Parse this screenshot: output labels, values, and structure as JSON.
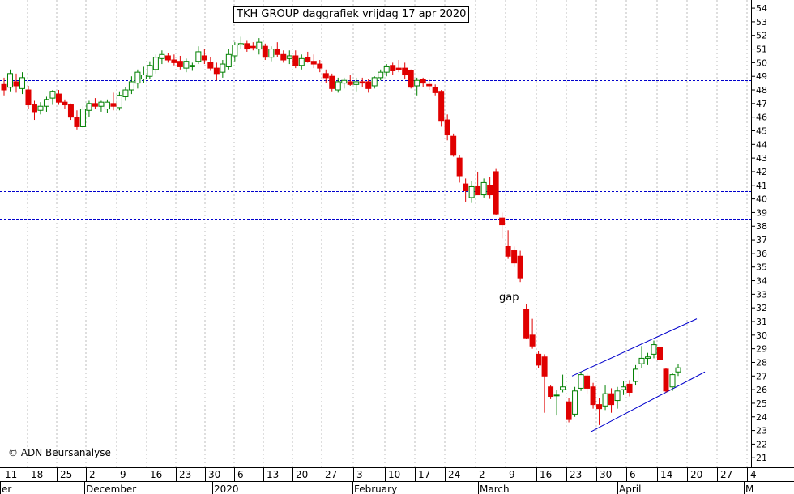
{
  "chart_data": {
    "type": "candlestick",
    "title": "TKH GROUP daggrafiek vrijdag 17 apr 2020",
    "copyright": "© ADN Beursanalyse",
    "annotations": [
      {
        "text": "gap"
      }
    ],
    "ylim": [
      20.3,
      54.6
    ],
    "y_ticks": [
      21,
      22,
      23,
      24,
      25,
      26,
      27,
      28,
      29,
      30,
      31,
      32,
      33,
      34,
      35,
      36,
      37,
      38,
      39,
      40,
      41,
      42,
      43,
      44,
      45,
      46,
      47,
      48,
      49,
      50,
      51,
      52,
      53,
      54
    ],
    "horizontal_levels": [
      52,
      48.7,
      40.6,
      38.5
    ],
    "x_tick_labels": [
      "11",
      "18",
      "25",
      "2",
      "9",
      "16",
      "23",
      "30",
      "6",
      "13",
      "20",
      "27",
      "3",
      "10",
      "17",
      "24",
      "2",
      "9",
      "16",
      "23",
      "30",
      "6",
      "14",
      "20",
      "27",
      "4"
    ],
    "month_labels": [
      "er",
      "December",
      "2020",
      "February",
      "March",
      "April",
      "M"
    ],
    "up_color": "#008000",
    "down_color": "#e00000",
    "channel_color": "#0000cc",
    "level_color": "#0000cc",
    "channel_lines": [
      {
        "x": [
          35,
          42
        ],
        "y": [
          27.0,
          31.2
        ]
      },
      {
        "x": [
          36,
          43
        ],
        "y": [
          22.9,
          27.3
        ]
      }
    ],
    "candles": [
      {
        "date": "11 Nov",
        "o": 48.4,
        "h": 48.9,
        "l": 47.6,
        "c": 48.0
      },
      {
        "date": "12 Nov",
        "o": 48.2,
        "h": 49.5,
        "l": 47.9,
        "c": 49.2
      },
      {
        "date": "13 Nov",
        "o": 48.6,
        "h": 49.2,
        "l": 47.8,
        "c": 48.3
      },
      {
        "date": "14 Nov",
        "o": 48.1,
        "h": 49.3,
        "l": 47.7,
        "c": 48.9
      },
      {
        "date": "15 Nov",
        "o": 48.0,
        "h": 48.3,
        "l": 46.6,
        "c": 46.9
      },
      {
        "date": "18 Nov",
        "o": 46.9,
        "h": 47.2,
        "l": 45.8,
        "c": 46.4
      },
      {
        "date": "19 Nov",
        "o": 46.5,
        "h": 47.1,
        "l": 46.2,
        "c": 46.8
      },
      {
        "date": "20 Nov",
        "o": 46.8,
        "h": 47.5,
        "l": 46.4,
        "c": 47.3
      },
      {
        "date": "21 Nov",
        "o": 47.4,
        "h": 48.0,
        "l": 46.9,
        "c": 47.9
      },
      {
        "date": "22 Nov",
        "o": 47.7,
        "h": 48.0,
        "l": 46.9,
        "c": 47.1
      },
      {
        "date": "25 Nov",
        "o": 47.1,
        "h": 47.3,
        "l": 46.6,
        "c": 46.9
      },
      {
        "date": "26 Nov",
        "o": 46.9,
        "h": 47.0,
        "l": 45.8,
        "c": 46.0
      },
      {
        "date": "27 Nov",
        "o": 46.0,
        "h": 46.5,
        "l": 45.1,
        "c": 45.3
      },
      {
        "date": "28 Nov",
        "o": 45.3,
        "h": 46.8,
        "l": 45.2,
        "c": 46.6
      },
      {
        "date": "29 Nov",
        "o": 46.5,
        "h": 47.2,
        "l": 46.0,
        "c": 47.0
      },
      {
        "date": "2 Dec",
        "o": 47.0,
        "h": 47.4,
        "l": 46.6,
        "c": 46.8
      },
      {
        "date": "3 Dec",
        "o": 46.8,
        "h": 47.2,
        "l": 46.4,
        "c": 47.1
      },
      {
        "date": "4 Dec",
        "o": 46.6,
        "h": 47.3,
        "l": 46.3,
        "c": 47.1
      },
      {
        "date": "5 Dec",
        "o": 47.0,
        "h": 47.8,
        "l": 46.5,
        "c": 46.8
      },
      {
        "date": "6 Dec",
        "o": 46.7,
        "h": 47.9,
        "l": 46.5,
        "c": 47.6
      },
      {
        "date": "9 Dec",
        "o": 47.5,
        "h": 48.2,
        "l": 47.2,
        "c": 48.0
      },
      {
        "date": "10 Dec",
        "o": 48.0,
        "h": 49.0,
        "l": 47.7,
        "c": 48.6
      },
      {
        "date": "11 Dec",
        "o": 48.5,
        "h": 49.5,
        "l": 48.1,
        "c": 49.3
      },
      {
        "date": "12 Dec",
        "o": 48.8,
        "h": 49.7,
        "l": 48.5,
        "c": 49.1
      },
      {
        "date": "13 Dec",
        "o": 49.0,
        "h": 50.1,
        "l": 48.8,
        "c": 49.8
      },
      {
        "date": "16 Dec",
        "o": 49.5,
        "h": 50.6,
        "l": 49.2,
        "c": 50.4
      },
      {
        "date": "17 Dec",
        "o": 50.3,
        "h": 50.9,
        "l": 49.9,
        "c": 50.6
      },
      {
        "date": "18 Dec",
        "o": 50.5,
        "h": 50.7,
        "l": 50.0,
        "c": 50.2
      },
      {
        "date": "19 Dec",
        "o": 50.2,
        "h": 50.6,
        "l": 49.8,
        "c": 50.0
      },
      {
        "date": "20 Dec",
        "o": 50.1,
        "h": 50.5,
        "l": 49.5,
        "c": 49.7
      },
      {
        "date": "23 Dec",
        "o": 49.6,
        "h": 50.3,
        "l": 49.3,
        "c": 50.1
      },
      {
        "date": "24 Dec",
        "o": 49.7,
        "h": 50.0,
        "l": 49.4,
        "c": 49.8
      },
      {
        "date": "27 Dec",
        "o": 50.1,
        "h": 51.2,
        "l": 49.9,
        "c": 50.8
      },
      {
        "date": "30 Dec",
        "o": 50.5,
        "h": 51.0,
        "l": 49.9,
        "c": 50.2
      },
      {
        "date": "31 Dec",
        "o": 50.0,
        "h": 50.4,
        "l": 49.4,
        "c": 49.6
      },
      {
        "date": "2 Jan",
        "o": 49.6,
        "h": 50.0,
        "l": 48.7,
        "c": 49.2
      },
      {
        "date": "3 Jan",
        "o": 49.3,
        "h": 50.2,
        "l": 48.9,
        "c": 49.9
      },
      {
        "date": "6 Jan",
        "o": 49.7,
        "h": 51.0,
        "l": 49.5,
        "c": 50.6
      },
      {
        "date": "7 Jan",
        "o": 50.5,
        "h": 51.5,
        "l": 50.1,
        "c": 51.3
      },
      {
        "date": "8 Jan",
        "o": 51.3,
        "h": 51.9,
        "l": 51.0,
        "c": 51.4
      },
      {
        "date": "9 Jan",
        "o": 51.4,
        "h": 51.6,
        "l": 50.8,
        "c": 51.0
      },
      {
        "date": "10 Jan",
        "o": 51.2,
        "h": 51.5,
        "l": 50.9,
        "c": 51.1
      },
      {
        "date": "13 Jan",
        "o": 51.0,
        "h": 51.8,
        "l": 50.6,
        "c": 51.5
      },
      {
        "date": "14 Jan",
        "o": 51.2,
        "h": 51.4,
        "l": 50.2,
        "c": 50.4
      },
      {
        "date": "15 Jan",
        "o": 50.4,
        "h": 51.2,
        "l": 50.1,
        "c": 51.0
      },
      {
        "date": "16 Jan",
        "o": 51.0,
        "h": 51.5,
        "l": 50.4,
        "c": 50.6
      },
      {
        "date": "17 Jan",
        "o": 50.6,
        "h": 50.9,
        "l": 50.0,
        "c": 50.2
      },
      {
        "date": "20 Jan",
        "o": 50.3,
        "h": 50.9,
        "l": 49.9,
        "c": 50.5
      },
      {
        "date": "21 Jan",
        "o": 50.5,
        "h": 50.9,
        "l": 49.6,
        "c": 49.8
      },
      {
        "date": "22 Jan",
        "o": 49.8,
        "h": 50.6,
        "l": 49.5,
        "c": 50.3
      },
      {
        "date": "23 Jan",
        "o": 50.4,
        "h": 50.8,
        "l": 50.0,
        "c": 50.1
      },
      {
        "date": "24 Jan",
        "o": 50.1,
        "h": 50.6,
        "l": 49.6,
        "c": 49.9
      },
      {
        "date": "27 Jan",
        "o": 49.9,
        "h": 50.2,
        "l": 49.3,
        "c": 49.6
      },
      {
        "date": "28 Jan",
        "o": 49.2,
        "h": 49.5,
        "l": 48.5,
        "c": 48.9
      },
      {
        "date": "29 Jan",
        "o": 49.0,
        "h": 49.2,
        "l": 47.9,
        "c": 48.1
      },
      {
        "date": "30 Jan",
        "o": 48.0,
        "h": 48.9,
        "l": 47.8,
        "c": 48.6
      },
      {
        "date": "31 Jan",
        "o": 48.5,
        "h": 48.9,
        "l": 48.1,
        "c": 48.7
      },
      {
        "date": "3 Feb",
        "o": 48.6,
        "h": 49.1,
        "l": 48.3,
        "c": 48.4
      },
      {
        "date": "4 Feb",
        "o": 48.4,
        "h": 48.9,
        "l": 47.9,
        "c": 48.6
      },
      {
        "date": "5 Feb",
        "o": 48.6,
        "h": 48.9,
        "l": 48.2,
        "c": 48.5
      },
      {
        "date": "6 Feb",
        "o": 48.6,
        "h": 48.8,
        "l": 47.8,
        "c": 48.1
      },
      {
        "date": "7 Feb",
        "o": 48.3,
        "h": 49.0,
        "l": 48.1,
        "c": 48.9
      },
      {
        "date": "10 Feb",
        "o": 48.9,
        "h": 49.5,
        "l": 48.7,
        "c": 49.3
      },
      {
        "date": "11 Feb",
        "o": 49.3,
        "h": 49.9,
        "l": 49.0,
        "c": 49.7
      },
      {
        "date": "12 Feb",
        "o": 49.8,
        "h": 50.0,
        "l": 49.1,
        "c": 49.4
      },
      {
        "date": "13 Feb",
        "o": 49.6,
        "h": 50.2,
        "l": 49.3,
        "c": 49.5
      },
      {
        "date": "14 Feb",
        "o": 49.6,
        "h": 50.0,
        "l": 48.8,
        "c": 49.1
      },
      {
        "date": "17 Feb",
        "o": 49.4,
        "h": 49.5,
        "l": 48.1,
        "c": 48.2
      },
      {
        "date": "18 Feb",
        "o": 48.3,
        "h": 48.9,
        "l": 47.6,
        "c": 48.7
      },
      {
        "date": "19 Feb",
        "o": 48.8,
        "h": 48.9,
        "l": 48.2,
        "c": 48.5
      },
      {
        "date": "20 Feb",
        "o": 48.4,
        "h": 48.8,
        "l": 48.0,
        "c": 48.3
      },
      {
        "date": "21 Feb",
        "o": 48.2,
        "h": 48.4,
        "l": 47.6,
        "c": 47.8
      },
      {
        "date": "24 Feb",
        "o": 47.9,
        "h": 48.0,
        "l": 45.3,
        "c": 45.7
      },
      {
        "date": "25 Feb",
        "o": 45.8,
        "h": 46.2,
        "l": 44.3,
        "c": 44.7
      },
      {
        "date": "26 Feb",
        "o": 44.6,
        "h": 44.8,
        "l": 43.1,
        "c": 43.2
      },
      {
        "date": "27 Feb",
        "o": 43.0,
        "h": 43.2,
        "l": 41.2,
        "c": 41.7
      },
      {
        "date": "28 Feb",
        "o": 41.1,
        "h": 41.5,
        "l": 39.8,
        "c": 40.6
      },
      {
        "date": "2 Mar",
        "o": 40.1,
        "h": 41.3,
        "l": 39.7,
        "c": 40.9
      },
      {
        "date": "3 Mar",
        "o": 40.9,
        "h": 42.0,
        "l": 40.3,
        "c": 40.3
      },
      {
        "date": "4 Mar",
        "o": 40.3,
        "h": 41.5,
        "l": 40.1,
        "c": 41.2
      },
      {
        "date": "5 Mar",
        "o": 41.0,
        "h": 41.6,
        "l": 40.0,
        "c": 40.3
      },
      {
        "date": "6 Mar",
        "o": 42.0,
        "h": 42.2,
        "l": 38.8,
        "c": 38.9
      },
      {
        "date": "9 Mar",
        "o": 38.6,
        "h": 39.0,
        "l": 37.1,
        "c": 38.1
      },
      {
        "date": "10 Mar",
        "o": 36.5,
        "h": 37.7,
        "l": 35.6,
        "c": 35.8
      },
      {
        "date": "11 Mar",
        "o": 36.2,
        "h": 36.5,
        "l": 35.0,
        "c": 35.3
      },
      {
        "date": "12 Mar",
        "o": 35.8,
        "h": 36.2,
        "l": 33.9,
        "c": 34.2
      },
      {
        "date": "13 Mar",
        "o": 31.9,
        "h": 32.3,
        "l": 29.7,
        "c": 29.8
      },
      {
        "date": "16 Mar",
        "o": 30.0,
        "h": 31.2,
        "l": 29.0,
        "c": 29.2
      },
      {
        "date": "17 Mar",
        "o": 28.6,
        "h": 28.8,
        "l": 27.6,
        "c": 27.8
      },
      {
        "date": "18 Mar",
        "o": 28.4,
        "h": 28.6,
        "l": 24.3,
        "c": 27.0
      },
      {
        "date": "19 Mar",
        "o": 26.2,
        "h": 26.3,
        "l": 25.3,
        "c": 25.5
      },
      {
        "date": "20 Mar",
        "o": 25.6,
        "h": 26.0,
        "l": 24.1,
        "c": 25.6
      },
      {
        "date": "23 Mar",
        "o": 26.0,
        "h": 27.1,
        "l": 25.8,
        "c": 26.2
      },
      {
        "date": "24 Mar",
        "o": 25.1,
        "h": 25.4,
        "l": 23.6,
        "c": 23.8
      },
      {
        "date": "25 Mar",
        "o": 24.2,
        "h": 26.2,
        "l": 24.0,
        "c": 25.9
      },
      {
        "date": "26 Mar",
        "o": 26.1,
        "h": 27.3,
        "l": 25.9,
        "c": 27.1
      },
      {
        "date": "27 Mar",
        "o": 27.0,
        "h": 27.2,
        "l": 25.7,
        "c": 26.1
      },
      {
        "date": "30 Mar",
        "o": 26.2,
        "h": 26.5,
        "l": 24.6,
        "c": 24.9
      },
      {
        "date": "31 Mar",
        "o": 24.9,
        "h": 25.4,
        "l": 23.4,
        "c": 24.6
      },
      {
        "date": "1 Apr",
        "o": 24.8,
        "h": 26.3,
        "l": 24.5,
        "c": 25.7
      },
      {
        "date": "2 Apr",
        "o": 25.7,
        "h": 26.1,
        "l": 24.3,
        "c": 24.9
      },
      {
        "date": "3 Apr",
        "o": 25.2,
        "h": 26.2,
        "l": 24.6,
        "c": 25.9
      },
      {
        "date": "6 Apr",
        "o": 26.0,
        "h": 26.6,
        "l": 25.6,
        "c": 26.2
      },
      {
        "date": "7 Apr",
        "o": 26.4,
        "h": 26.7,
        "l": 25.5,
        "c": 25.8
      },
      {
        "date": "8 Apr",
        "o": 26.6,
        "h": 27.8,
        "l": 26.3,
        "c": 27.5
      },
      {
        "date": "9 Apr",
        "o": 27.9,
        "h": 29.2,
        "l": 27.6,
        "c": 28.3
      },
      {
        "date": "14 Apr",
        "o": 28.3,
        "h": 28.7,
        "l": 27.8,
        "c": 28.4
      },
      {
        "date": "15 Apr",
        "o": 28.6,
        "h": 29.6,
        "l": 28.3,
        "c": 29.3
      },
      {
        "date": "16 Apr",
        "o": 29.1,
        "h": 29.3,
        "l": 28.0,
        "c": 28.2
      },
      {
        "date": "17 Apr",
        "o": 27.5,
        "h": 27.6,
        "l": 25.8,
        "c": 25.9
      }
    ],
    "extra_candles": [
      {
        "o": 26.2,
        "h": 27.2,
        "l": 25.9,
        "c": 27.1
      },
      {
        "o": 27.3,
        "h": 27.9,
        "l": 27.0,
        "c": 27.6
      }
    ]
  }
}
